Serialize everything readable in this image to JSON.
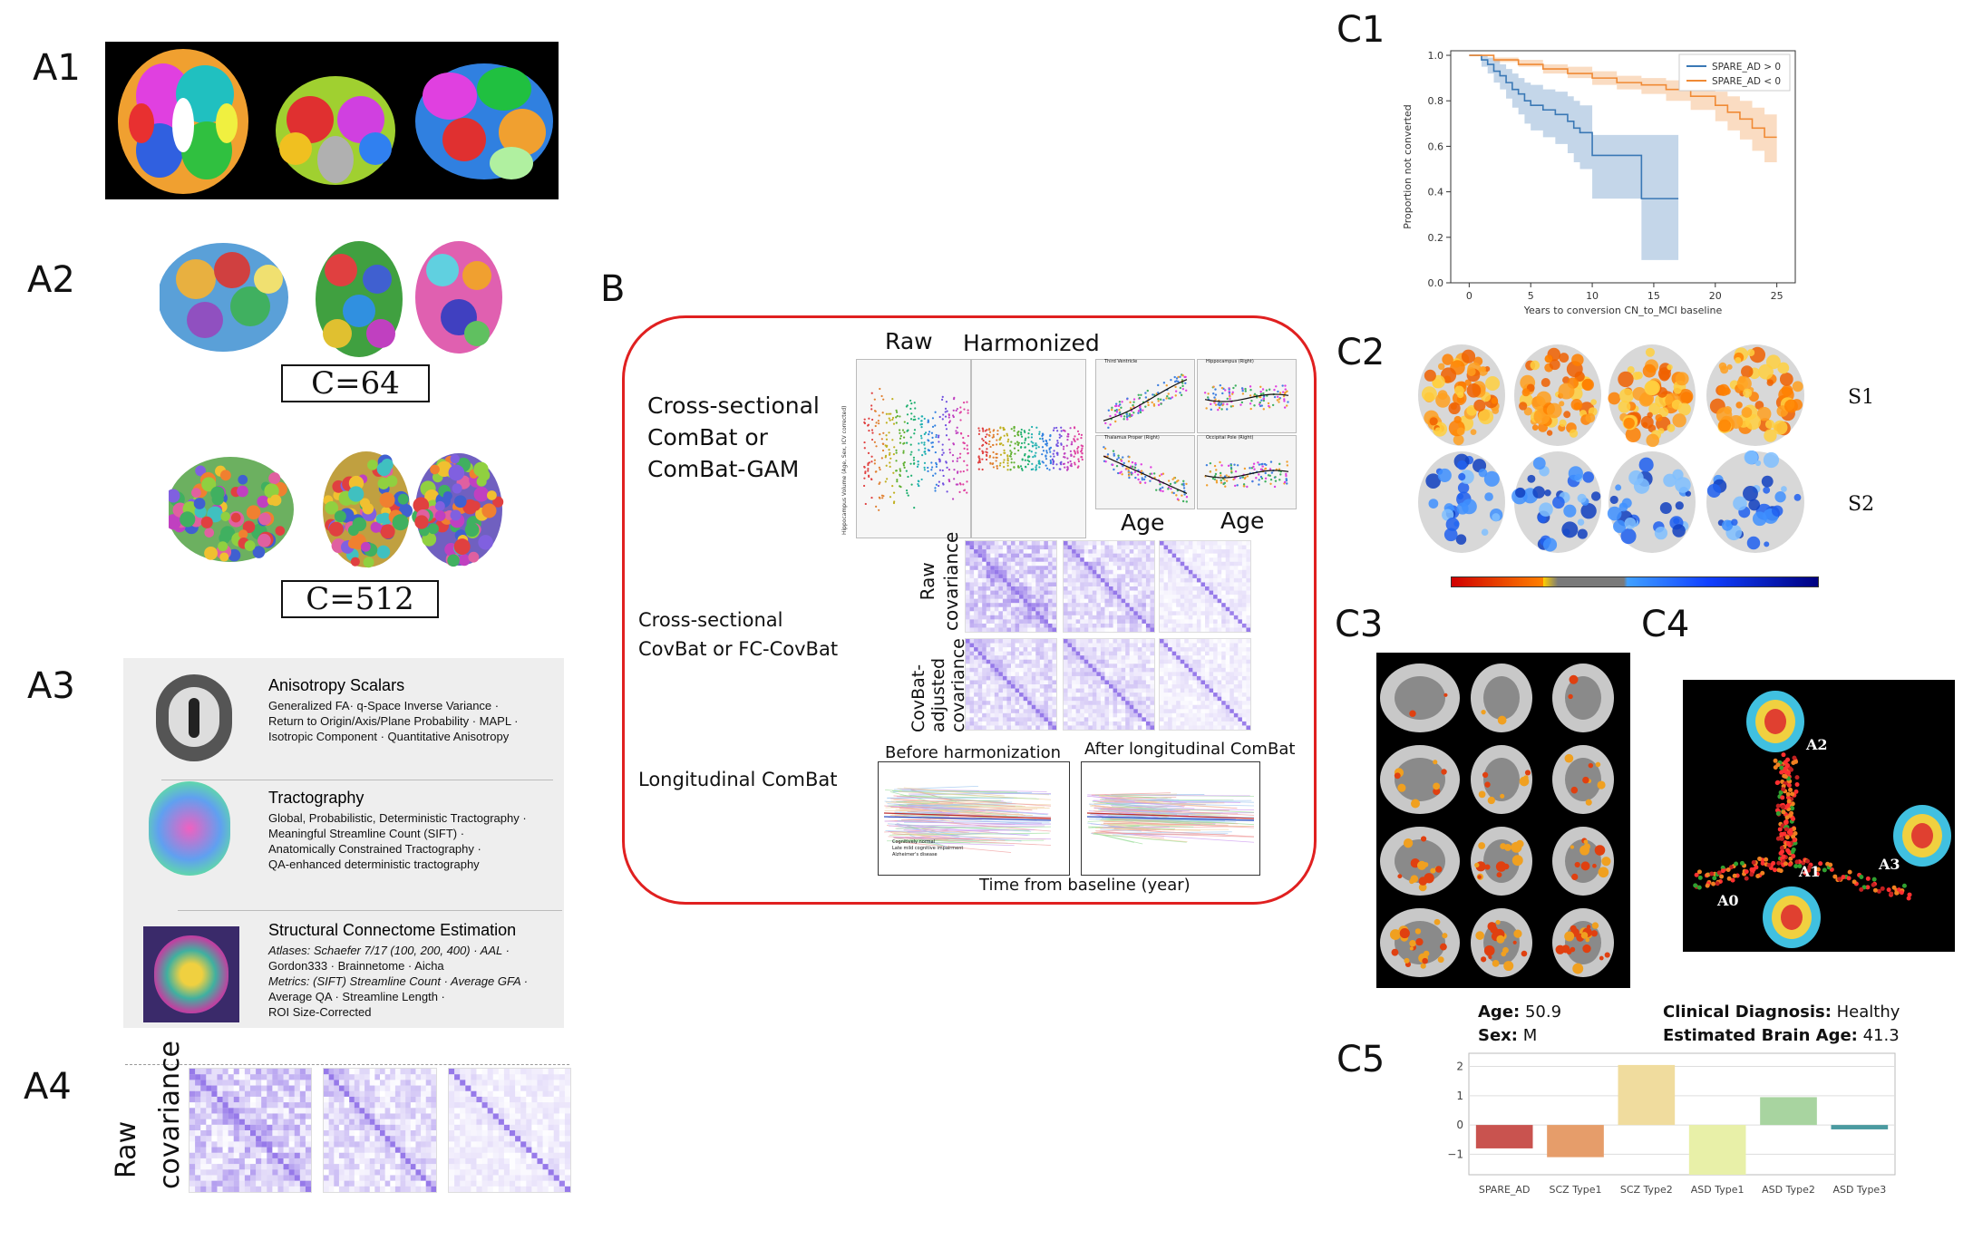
{
  "panels": {
    "a1": "A1",
    "a2": "A2",
    "a3": "A3",
    "a4": "A4",
    "b": "B",
    "c1": "C1",
    "c2": "C2",
    "c3": "C3",
    "c4": "C4",
    "c5": "C5"
  },
  "a2": {
    "box1": "C=64",
    "box2": "C=512"
  },
  "a3": {
    "rows": [
      {
        "title": "Anisotropy Scalars",
        "lines": [
          "Generalized FA· q-Space Inverse Variance ·",
          "Return to Origin/Axis/Plane Probability · MAPL ·",
          "Isotropic Component · Quantitative Anisotropy"
        ]
      },
      {
        "title": "Tractography",
        "lines": [
          "Global, Probabilistic, Deterministic Tractography ·",
          "Meaningful Streamline Count (SIFT) ·",
          "Anatomically Constrained Tractography ·",
          "QA-enhanced deterministic tractography"
        ]
      },
      {
        "title": "Structural Connectome Estimation",
        "lines": [
          "Atlases: Schaefer 7/17 (100, 200, 400) · AAL ·",
          "Gordon333 · Brainnetome · Aicha",
          "Metrics: (SIFT) Streamline Count · Average GFA ·",
          "Average QA · Streamline Length ·",
          "ROI Size-Corrected"
        ]
      }
    ]
  },
  "a4": {
    "ylabel1": "Raw",
    "ylabel2": "covariance"
  },
  "b": {
    "row1": [
      "Cross-sectional",
      "ComBat or",
      "ComBat-GAM"
    ],
    "row2": [
      "Cross-sectional",
      "CovBat or FC-CovBat"
    ],
    "row3": "Longitudinal ComBat",
    "raw": "Raw",
    "harmonized": "Harmonized",
    "age1": "Age",
    "age2": "Age",
    "cov_raw": [
      "Raw",
      "covariance"
    ],
    "cov_adj": [
      "CovBat-",
      "adjusted",
      "covariance"
    ],
    "before": "Before harmonization",
    "after": "After longitudinal ComBat",
    "xaxis": "Time from baseline (year)",
    "legend": [
      "Cognitively normal",
      "Late mild cognitive impairment",
      "Alzheimer's disease"
    ],
    "small_titles": [
      "Third Ventricle",
      "Hippocampus (Right)",
      "Thalamus Proper (Right)",
      "Occipital Pole (Right)"
    ],
    "raw_ylabel": "Hippocampus Volume (Age, Sex, ICV corrected)"
  },
  "c2": {
    "s1": "S1",
    "s2": "S2"
  },
  "c4": {
    "labels": [
      "A2",
      "A1",
      "A3",
      "A0"
    ]
  },
  "c5": {
    "age_label": "Age:",
    "age_value": " 50.9",
    "sex_label": "Sex:",
    "sex_value": " M",
    "dx_label": "Clinical Diagnosis:",
    "dx_value": " Healthy",
    "ba_label": "Estimated Brain Age:",
    "ba_value": " 41.3"
  },
  "chart_data": [
    {
      "id": "c1",
      "type": "line",
      "xlabel": "Years to conversion CN_to_MCI baseline",
      "ylabel": "Proportion not converted",
      "xlim": [
        -1.5,
        26.5
      ],
      "ylim": [
        0.0,
        1.02
      ],
      "xticks": [
        0,
        5,
        10,
        15,
        20,
        25
      ],
      "yticks": [
        0.0,
        0.2,
        0.4,
        0.6,
        0.8,
        1.0
      ],
      "legend_position": "top-right",
      "series": [
        {
          "name": "SPARE_AD > 0",
          "color": "#3a78b5",
          "x": [
            0,
            1,
            1.5,
            2,
            2.5,
            3,
            3.5,
            4,
            4.5,
            5,
            6,
            7,
            8,
            8.5,
            9,
            10,
            13.5,
            14,
            17
          ],
          "y": [
            1.0,
            0.98,
            0.96,
            0.93,
            0.91,
            0.88,
            0.85,
            0.83,
            0.8,
            0.78,
            0.76,
            0.74,
            0.71,
            0.68,
            0.66,
            0.56,
            0.56,
            0.37,
            0.37
          ],
          "lower": [
            1.0,
            0.95,
            0.92,
            0.88,
            0.85,
            0.81,
            0.77,
            0.74,
            0.7,
            0.67,
            0.64,
            0.61,
            0.57,
            0.53,
            0.5,
            0.37,
            0.37,
            0.1,
            0.1
          ],
          "upper": [
            1.0,
            1.0,
            0.99,
            0.98,
            0.96,
            0.94,
            0.92,
            0.9,
            0.88,
            0.87,
            0.85,
            0.84,
            0.82,
            0.8,
            0.78,
            0.65,
            0.65,
            0.65,
            0.65
          ]
        },
        {
          "name": "SPARE_AD < 0",
          "color": "#f08a35",
          "x": [
            0,
            2,
            4,
            6,
            8,
            10,
            12,
            14,
            16,
            18,
            20,
            21,
            22,
            23,
            24,
            25
          ],
          "y": [
            1.0,
            0.98,
            0.96,
            0.94,
            0.92,
            0.9,
            0.88,
            0.87,
            0.85,
            0.82,
            0.78,
            0.75,
            0.72,
            0.68,
            0.64,
            0.64
          ],
          "lower": [
            1.0,
            0.97,
            0.95,
            0.92,
            0.9,
            0.87,
            0.85,
            0.83,
            0.8,
            0.76,
            0.71,
            0.67,
            0.63,
            0.58,
            0.53,
            0.53
          ],
          "upper": [
            1.0,
            0.99,
            0.98,
            0.96,
            0.95,
            0.93,
            0.91,
            0.9,
            0.89,
            0.87,
            0.84,
            0.82,
            0.8,
            0.77,
            0.74,
            0.74
          ]
        }
      ]
    },
    {
      "id": "c5",
      "type": "bar",
      "categories": [
        "SPARE_AD",
        "SCZ Type1",
        "SCZ Type2",
        "ASD Type1",
        "ASD Type2",
        "ASD Type3"
      ],
      "values": [
        -0.8,
        -1.1,
        2.05,
        -1.7,
        0.95,
        -0.15
      ],
      "colors": [
        "#c9534f",
        "#e69d6a",
        "#f0dc9e",
        "#e8f0a8",
        "#a8d4a0",
        "#4a9aa0"
      ],
      "ylim": [
        -1.7,
        2.45
      ],
      "yticks": [
        -1,
        0,
        1,
        2
      ],
      "ytick_labels": [
        "−1",
        "0",
        "1",
        "2"
      ]
    }
  ]
}
